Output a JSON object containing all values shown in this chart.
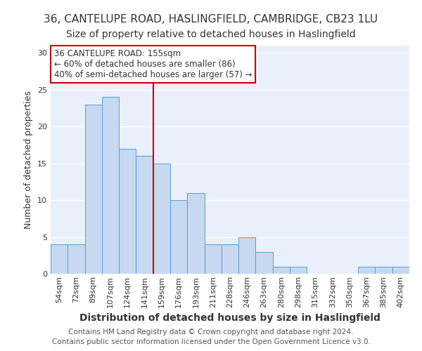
{
  "title_line1": "36, CANTELUPE ROAD, HASLINGFIELD, CAMBRIDGE, CB23 1LU",
  "title_line2": "Size of property relative to detached houses in Haslingfield",
  "xlabel": "Distribution of detached houses by size in Haslingfield",
  "ylabel": "Number of detached properties",
  "categories": [
    "54sqm",
    "72sqm",
    "89sqm",
    "107sqm",
    "124sqm",
    "141sqm",
    "159sqm",
    "176sqm",
    "193sqm",
    "211sqm",
    "228sqm",
    "246sqm",
    "263sqm",
    "280sqm",
    "298sqm",
    "315sqm",
    "332sqm",
    "350sqm",
    "367sqm",
    "385sqm",
    "402sqm"
  ],
  "values": [
    4,
    4,
    23,
    24,
    17,
    16,
    15,
    10,
    11,
    4,
    4,
    5,
    3,
    1,
    1,
    0,
    0,
    0,
    1,
    1,
    1
  ],
  "bar_color": "#c6d9f0",
  "bar_edge_color": "#5b9bd5",
  "highlight_index": 6,
  "highlight_line_color": "#cc0000",
  "annotation_line1": "36 CANTELUPE ROAD: 155sqm",
  "annotation_line2": "← 60% of detached houses are smaller (86)",
  "annotation_line3": "40% of semi-detached houses are larger (57) →",
  "annotation_box_color": "#ffffff",
  "annotation_box_edge_color": "#cc0000",
  "ylim": [
    0,
    31
  ],
  "yticks": [
    0,
    5,
    10,
    15,
    20,
    25,
    30
  ],
  "footer_line1": "Contains HM Land Registry data © Crown copyright and database right 2024.",
  "footer_line2": "Contains public sector information licensed under the Open Government Licence v3.0.",
  "background_color": "#eaf0fb",
  "grid_color": "#ffffff",
  "title_fontsize": 11,
  "subtitle_fontsize": 10,
  "axis_label_fontsize": 9,
  "tick_fontsize": 8,
  "annotation_fontsize": 8.5,
  "footer_fontsize": 7.5
}
